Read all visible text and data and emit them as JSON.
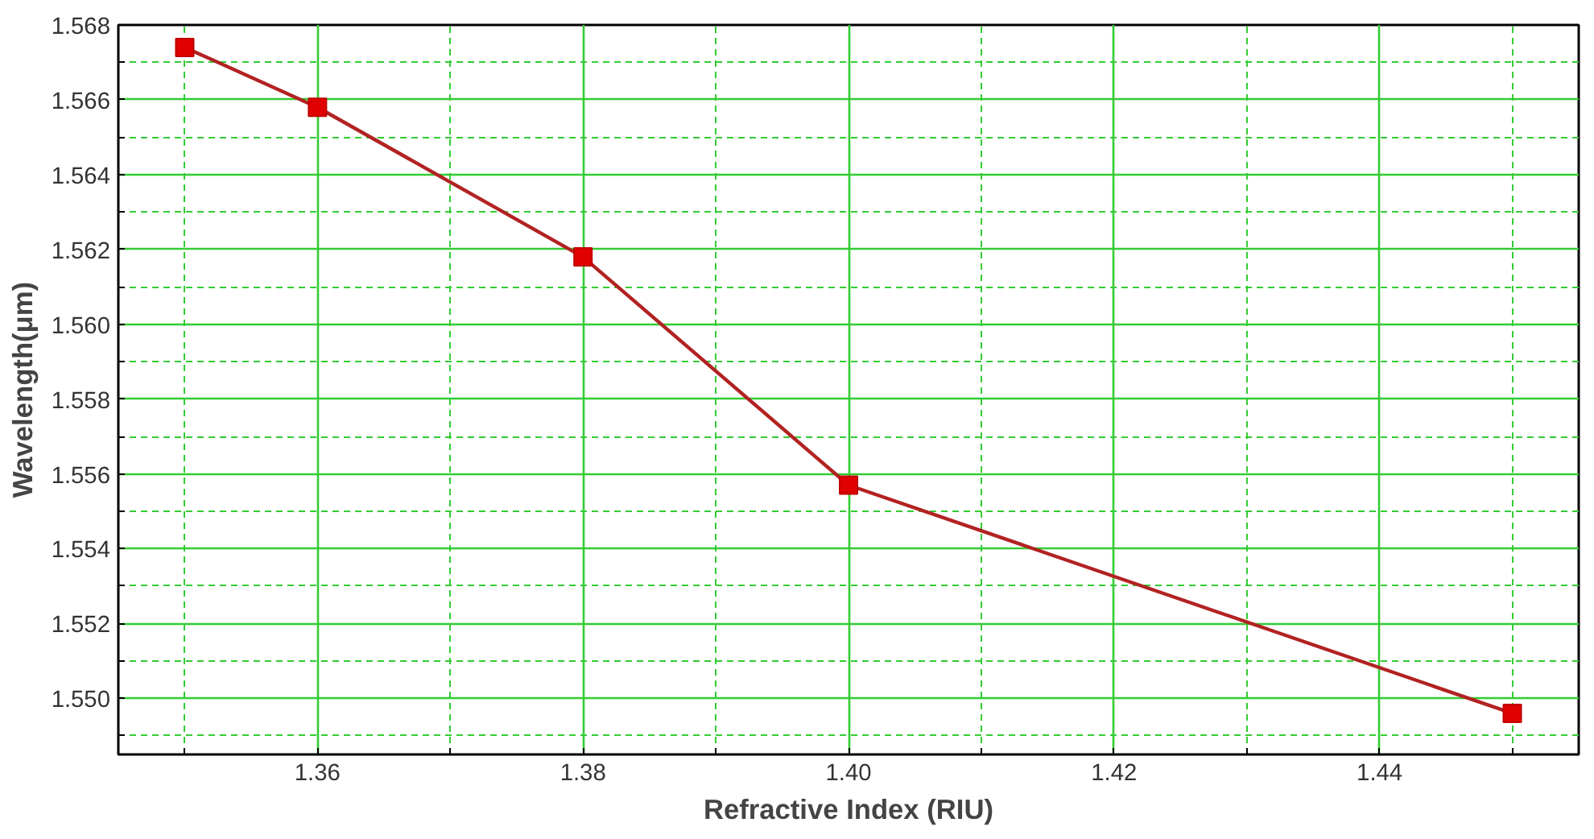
{
  "chart_data": {
    "type": "line",
    "xlabel": "Refractive Index (RIU)",
    "ylabel": "Wavelength(μm)",
    "x": [
      1.35,
      1.36,
      1.38,
      1.4,
      1.45
    ],
    "series": [
      {
        "color": "#b22222",
        "values": [
          1.5674,
          1.5658,
          1.5618,
          1.5557,
          1.5496
        ]
      }
    ],
    "marker": "square",
    "line_style": "solid",
    "grid": true,
    "xlim": [
      1.345,
      1.455
    ],
    "ylim": [
      1.5485,
      1.568
    ],
    "xticks": [
      {
        "value": 1.35,
        "label": null
      },
      {
        "value": 1.36,
        "label": "1.36"
      },
      {
        "value": 1.37,
        "label": null
      },
      {
        "value": 1.38,
        "label": "1.38"
      },
      {
        "value": 1.39,
        "label": null
      },
      {
        "value": 1.4,
        "label": "1.40"
      },
      {
        "value": 1.41,
        "label": null
      },
      {
        "value": 1.42,
        "label": "1.42"
      },
      {
        "value": 1.43,
        "label": null
      },
      {
        "value": 1.44,
        "label": "1.44"
      },
      {
        "value": 1.45,
        "label": null
      }
    ],
    "yticks": [
      {
        "value": 1.549,
        "label": null
      },
      {
        "value": 1.55,
        "label": "1.550"
      },
      {
        "value": 1.551,
        "label": null
      },
      {
        "value": 1.552,
        "label": "1.552"
      },
      {
        "value": 1.553,
        "label": null
      },
      {
        "value": 1.554,
        "label": "1.554"
      },
      {
        "value": 1.555,
        "label": null
      },
      {
        "value": 1.556,
        "label": "1.556"
      },
      {
        "value": 1.557,
        "label": null
      },
      {
        "value": 1.558,
        "label": "1.558"
      },
      {
        "value": 1.559,
        "label": null
      },
      {
        "value": 1.56,
        "label": "1.560"
      },
      {
        "value": 1.561,
        "label": null
      },
      {
        "value": 1.562,
        "label": "1.562"
      },
      {
        "value": 1.563,
        "label": null
      },
      {
        "value": 1.564,
        "label": "1.564"
      },
      {
        "value": 1.565,
        "label": null
      },
      {
        "value": 1.566,
        "label": "1.566"
      },
      {
        "value": 1.567,
        "label": null
      },
      {
        "value": 1.568,
        "label": "1.568"
      }
    ]
  }
}
